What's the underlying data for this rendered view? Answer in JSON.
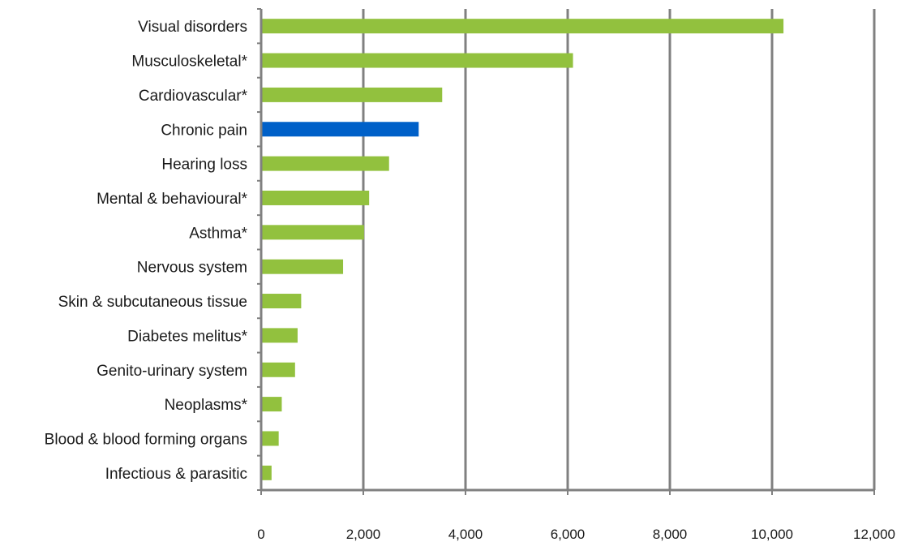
{
  "chart_data": {
    "type": "bar",
    "orientation": "horizontal",
    "categories": [
      "Visual disorders",
      "Musculoskeletal*",
      "Cardiovascular*",
      "Chronic pain",
      "Hearing loss",
      "Mental & behavioural*",
      "Asthma*",
      "Nervous system",
      "Skin & subcutaneous tissue",
      "Diabetes melitus*",
      "Genito-urinary system",
      "Neoplasms*",
      "Blood & blood forming organs",
      "Infectious & parasitic"
    ],
    "values": [
      10200,
      6080,
      3520,
      3060,
      2480,
      2090,
      1990,
      1580,
      760,
      690,
      640,
      380,
      320,
      180
    ],
    "colors": [
      "#92c13e",
      "#92c13e",
      "#92c13e",
      "#0060c8",
      "#92c13e",
      "#92c13e",
      "#92c13e",
      "#92c13e",
      "#92c13e",
      "#92c13e",
      "#92c13e",
      "#92c13e",
      "#92c13e",
      "#92c13e"
    ],
    "xlim": [
      0,
      12000
    ],
    "xticks": [
      0,
      2000,
      4000,
      6000,
      8000,
      10000,
      12000
    ],
    "xtick_labels": [
      "0",
      "2,000",
      "4,000",
      "6,000",
      "8,000",
      "10,000",
      "12,000"
    ],
    "grid": true,
    "gridline_color": "#808080",
    "title": "",
    "xlabel": "",
    "ylabel": ""
  }
}
